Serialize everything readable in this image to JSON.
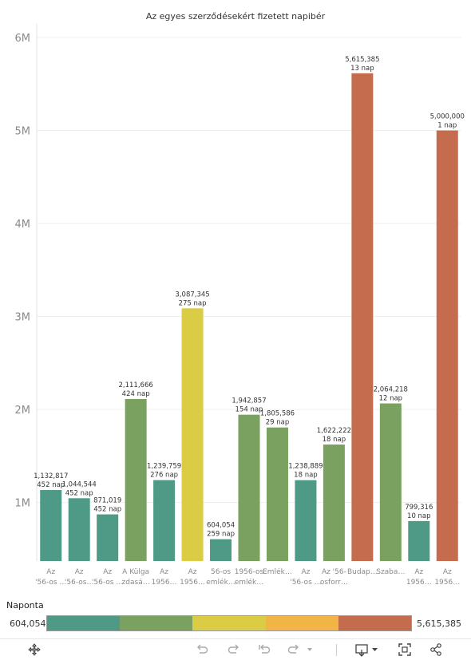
{
  "chart_data": {
    "type": "bar",
    "title": "Az egyes szerződésekért fizetett napibér",
    "xlabel": "",
    "ylabel": "",
    "ylim": [
      0,
      6200000
    ],
    "y_ticks": [
      {
        "value": 1000000,
        "label": "1M"
      },
      {
        "value": 2000000,
        "label": "2M"
      },
      {
        "value": 3000000,
        "label": "3M"
      },
      {
        "value": 4000000,
        "label": "4M"
      },
      {
        "value": 5000000,
        "label": "5M"
      },
      {
        "value": 6000000,
        "label": "6M"
      }
    ],
    "grid": true,
    "bars": [
      {
        "cat1": "Az",
        "cat2": "'56-os …",
        "value": 1132817,
        "label": "1,132,817",
        "days": "452 nap",
        "color": "#4e9a86"
      },
      {
        "cat1": "Az",
        "cat2": "'56-os…",
        "value": 1044544,
        "label": "1,044,544",
        "days": "452 nap",
        "color": "#4e9a86"
      },
      {
        "cat1": "Az",
        "cat2": "'56-os …",
        "value": 871019,
        "label": "871,019",
        "days": "452 nap",
        "color": "#4e9a86"
      },
      {
        "cat1": "A Külga",
        "cat2": "zdasá…",
        "value": 2111666,
        "label": "2,111,666",
        "days": "424 nap",
        "color": "#7aa160"
      },
      {
        "cat1": "Az",
        "cat2": "1956…",
        "value": 1239759,
        "label": "1,239,759",
        "days": "276 nap",
        "color": "#4e9a86"
      },
      {
        "cat1": "Az",
        "cat2": "1956…",
        "value": 3087345,
        "label": "3,087,345",
        "days": "275 nap",
        "color": "#dbcc46"
      },
      {
        "cat1": "56-os",
        "cat2": "emlék…",
        "value": 604054,
        "label": "604,054",
        "days": "259 nap",
        "color": "#4e9a86"
      },
      {
        "cat1": "1956-os",
        "cat2": "emlék…",
        "value": 1942857,
        "label": "1,942,857",
        "days": "154 nap",
        "color": "#7aa160"
      },
      {
        "cat1": "Emlék…",
        "cat2": "",
        "value": 1805586,
        "label": "1,805,586",
        "days": "29 nap",
        "color": "#7aa160"
      },
      {
        "cat1": "Az",
        "cat2": "'56-os …",
        "value": 1238889,
        "label": "1,238,889",
        "days": "18 nap",
        "color": "#4e9a86"
      },
      {
        "cat1": "Az '56-",
        "cat2": "osforr…",
        "value": 1622222,
        "label": "1,622,222",
        "days": "18 nap",
        "color": "#7aa160"
      },
      {
        "cat1": "Budap…",
        "cat2": "",
        "value": 5615385,
        "label": "5,615,385",
        "days": "13 nap",
        "color": "#c56b4e"
      },
      {
        "cat1": "Szaba…",
        "cat2": "",
        "value": 2064218,
        "label": "2,064,218",
        "days": "12 nap",
        "color": "#7aa160"
      },
      {
        "cat1": "Az",
        "cat2": "1956…",
        "value": 799316,
        "label": "799,316",
        "days": "10 nap",
        "color": "#4e9a86"
      },
      {
        "cat1": "Az",
        "cat2": "1956…",
        "value": 5000000,
        "label": "5,000,000",
        "days": "1 nap",
        "color": "#c56b4e"
      }
    ],
    "legend": {
      "title": "Naponta",
      "min_label": "604,054",
      "max_label": "5,615,385",
      "colors": [
        "#4e9a86",
        "#7aa160",
        "#dbcc46",
        "#f2b447",
        "#c56b4e"
      ]
    }
  },
  "toolbar": {
    "icons": [
      "move-icon",
      "undo-icon",
      "redo-icon",
      "revert-icon",
      "refresh-icon",
      "download-icon",
      "fullscreen-icon",
      "share-icon"
    ]
  }
}
